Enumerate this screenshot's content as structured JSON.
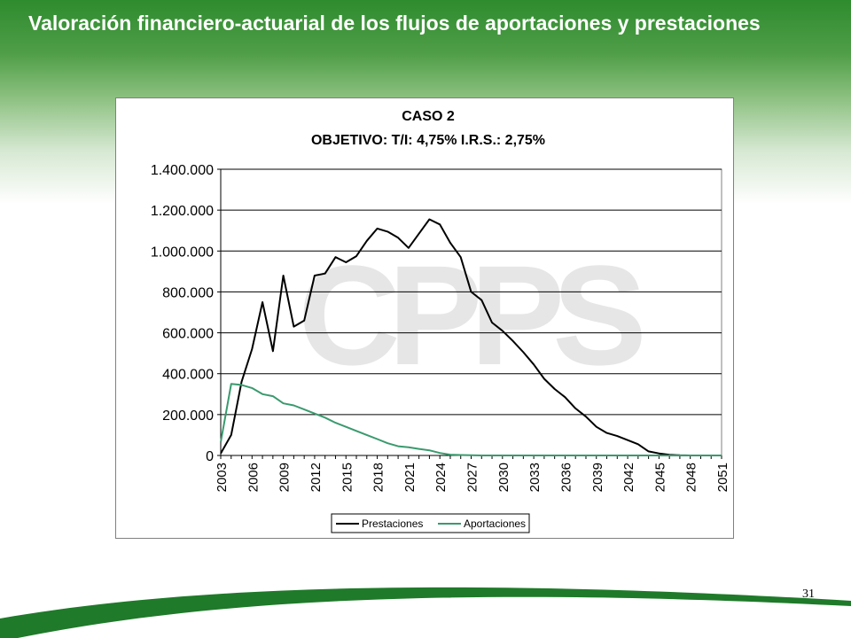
{
  "slide": {
    "title": "Valoración financiero-actuarial de los flujos de aportaciones y prestaciones",
    "page_number": "31"
  },
  "colors": {
    "header_green": "#2e8b2e",
    "swoosh_green": "#1f7a2a",
    "prestaciones": "#000000",
    "aportaciones": "#3a9a6e",
    "watermark": "#d3d3d3"
  },
  "watermark_text": "CPPS",
  "chart_data": {
    "type": "line",
    "title": "CASO 2",
    "subtitle": "OBJETIVO:  T/I: 4,75% I.R.S.: 2,75%",
    "xlabel": "",
    "ylabel": "",
    "ylim": [
      0,
      1400000
    ],
    "yticks": [
      "0",
      "200.000",
      "400.000",
      "600.000",
      "800.000",
      "1.000.000",
      "1.200.000",
      "1.400.000"
    ],
    "xticks": [
      "2003",
      "2006",
      "2009",
      "2012",
      "2015",
      "2018",
      "2021",
      "2024",
      "2027",
      "2030",
      "2033",
      "2036",
      "2039",
      "2042",
      "2045",
      "2048",
      "2051"
    ],
    "grid": "horizontal",
    "legend_position": "bottom",
    "x": [
      2003,
      2004,
      2005,
      2006,
      2007,
      2008,
      2009,
      2010,
      2011,
      2012,
      2013,
      2014,
      2015,
      2016,
      2017,
      2018,
      2019,
      2020,
      2021,
      2022,
      2023,
      2024,
      2025,
      2026,
      2027,
      2028,
      2029,
      2030,
      2031,
      2032,
      2033,
      2034,
      2035,
      2036,
      2037,
      2038,
      2039,
      2040,
      2041,
      2042,
      2043,
      2044,
      2045,
      2046,
      2047,
      2048,
      2049,
      2050,
      2051
    ],
    "series": [
      {
        "name": "Prestaciones",
        "values": [
          10000,
          100000,
          360000,
          520000,
          750000,
          510000,
          880000,
          630000,
          660000,
          880000,
          890000,
          970000,
          945000,
          975000,
          1050000,
          1110000,
          1095000,
          1065000,
          1015000,
          1085000,
          1155000,
          1130000,
          1040000,
          970000,
          800000,
          760000,
          650000,
          610000,
          560000,
          505000,
          445000,
          375000,
          325000,
          285000,
          230000,
          190000,
          140000,
          110000,
          95000,
          75000,
          55000,
          20000,
          10000,
          3000,
          1000,
          0,
          0,
          0,
          0
        ],
        "color": "#000000"
      },
      {
        "name": "Aportaciones",
        "values": [
          65000,
          350000,
          345000,
          330000,
          300000,
          290000,
          255000,
          245000,
          225000,
          205000,
          185000,
          160000,
          140000,
          120000,
          100000,
          80000,
          60000,
          45000,
          40000,
          32000,
          25000,
          12000,
          4000,
          2000,
          1000,
          0,
          0,
          0,
          0,
          0,
          0,
          0,
          0,
          0,
          0,
          0,
          0,
          0,
          0,
          0,
          0,
          0,
          0,
          0,
          0,
          0,
          0,
          0,
          0
        ],
        "color": "#3a9a6e"
      }
    ]
  }
}
